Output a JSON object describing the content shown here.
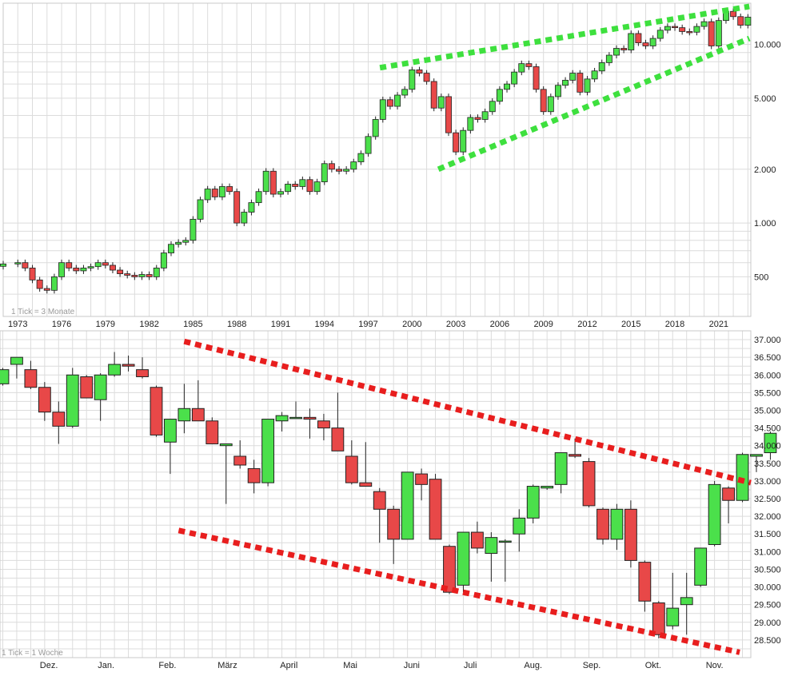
{
  "chart_data": [
    {
      "type": "candlestick",
      "scale": "log",
      "period_note": "1 Tick = 3 Monate",
      "x_tick_labels": [
        "1973",
        "1976",
        "1979",
        "1982",
        "1985",
        "1988",
        "1991",
        "1994",
        "1997",
        "2000",
        "2003",
        "2006",
        "2009",
        "2012",
        "2015",
        "2018",
        "2021"
      ],
      "y_tick_labels": [
        "500",
        "1.000",
        "2.000",
        "5.000",
        "10.000"
      ],
      "y_ticks": [
        500,
        1000,
        2000,
        5000,
        10000
      ],
      "ylim": [
        300,
        17000
      ],
      "xlim": [
        1972.0,
        2023.2
      ],
      "grid": true,
      "up_color": "#4be04b",
      "down_color": "#e84848",
      "closes": [
        [
          1972.0,
          590
        ],
        [
          1973.0,
          600
        ],
        [
          1973.5,
          560
        ],
        [
          1974.0,
          480
        ],
        [
          1974.5,
          430
        ],
        [
          1975.0,
          420
        ],
        [
          1975.5,
          500
        ],
        [
          1976.0,
          600
        ],
        [
          1976.5,
          560
        ],
        [
          1977.0,
          540
        ],
        [
          1977.5,
          560
        ],
        [
          1978.0,
          570
        ],
        [
          1978.5,
          600
        ],
        [
          1979.0,
          580
        ],
        [
          1979.5,
          545
        ],
        [
          1980.0,
          520
        ],
        [
          1980.5,
          510
        ],
        [
          1981.0,
          500
        ],
        [
          1981.5,
          515
        ],
        [
          1982.0,
          500
        ],
        [
          1982.5,
          560
        ],
        [
          1983.0,
          680
        ],
        [
          1983.5,
          760
        ],
        [
          1984.0,
          780
        ],
        [
          1984.5,
          800
        ],
        [
          1985.0,
          1050
        ],
        [
          1985.5,
          1350
        ],
        [
          1986.0,
          1550
        ],
        [
          1986.5,
          1400
        ],
        [
          1987.0,
          1600
        ],
        [
          1987.5,
          1500
        ],
        [
          1988.0,
          1000
        ],
        [
          1988.5,
          1150
        ],
        [
          1989.0,
          1300
        ],
        [
          1989.5,
          1500
        ],
        [
          1990.0,
          1950
        ],
        [
          1990.5,
          1450
        ],
        [
          1991.0,
          1500
        ],
        [
          1991.5,
          1650
        ],
        [
          1992.0,
          1600
        ],
        [
          1992.5,
          1750
        ],
        [
          1993.0,
          1500
        ],
        [
          1993.5,
          1700
        ],
        [
          1994.0,
          2150
        ],
        [
          1994.5,
          2000
        ],
        [
          1995.0,
          1950
        ],
        [
          1995.5,
          2000
        ],
        [
          1996.0,
          2200
        ],
        [
          1996.5,
          2450
        ],
        [
          1997.0,
          3050
        ],
        [
          1997.5,
          3800
        ],
        [
          1998.0,
          4900
        ],
        [
          1998.5,
          4500
        ],
        [
          1999.0,
          5200
        ],
        [
          1999.5,
          5600
        ],
        [
          2000.0,
          7200
        ],
        [
          2000.5,
          6900
        ],
        [
          2001.0,
          6200
        ],
        [
          2001.5,
          4400
        ],
        [
          2002.0,
          5100
        ],
        [
          2002.5,
          3200
        ],
        [
          2003.0,
          2500
        ],
        [
          2003.5,
          3300
        ],
        [
          2004.0,
          3900
        ],
        [
          2004.5,
          3800
        ],
        [
          2005.0,
          4200
        ],
        [
          2005.5,
          4800
        ],
        [
          2006.0,
          5600
        ],
        [
          2006.5,
          6000
        ],
        [
          2007.0,
          7000
        ],
        [
          2007.5,
          7800
        ],
        [
          2008.0,
          7500
        ],
        [
          2008.5,
          5600
        ],
        [
          2009.0,
          4200
        ],
        [
          2009.5,
          5100
        ],
        [
          2010.0,
          5900
        ],
        [
          2010.5,
          6300
        ],
        [
          2011.0,
          6900
        ],
        [
          2011.5,
          5400
        ],
        [
          2012.0,
          6400
        ],
        [
          2012.5,
          7100
        ],
        [
          2013.0,
          7900
        ],
        [
          2013.5,
          8700
        ],
        [
          2014.0,
          9500
        ],
        [
          2014.5,
          9300
        ],
        [
          2015.0,
          11500
        ],
        [
          2015.5,
          10200
        ],
        [
          2016.0,
          9800
        ],
        [
          2016.5,
          10800
        ],
        [
          2017.0,
          12000
        ],
        [
          2017.5,
          12600
        ],
        [
          2018.0,
          12400
        ],
        [
          2018.5,
          11800
        ],
        [
          2019.0,
          11700
        ],
        [
          2019.5,
          12600
        ],
        [
          2020.0,
          13400
        ],
        [
          2020.5,
          9800
        ],
        [
          2021.0,
          13600
        ],
        [
          2021.5,
          15300
        ],
        [
          2022.0,
          14300
        ],
        [
          2022.5,
          12800
        ],
        [
          2023.0,
          14200
        ]
      ],
      "trend_lines": [
        {
          "name": "upper",
          "color": "#3ee03e",
          "from": [
            1997.8,
            7400
          ],
          "to": [
            2023.1,
            16300
          ]
        },
        {
          "name": "lower",
          "color": "#3ee03e",
          "from": [
            2001.8,
            2000
          ],
          "to": [
            2023.1,
            10800
          ]
        }
      ]
    },
    {
      "type": "candlestick",
      "scale": "linear",
      "period_note": "1 Tick = 1 Woche",
      "x_tick_labels": [
        "Dez.",
        "Jan.",
        "Feb.",
        "März",
        "April",
        "Mai",
        "Juni",
        "Juli",
        "Aug.",
        "Sep.",
        "Okt.",
        "Nov."
      ],
      "y_tick_labels": [
        "28.500",
        "29.000",
        "29.500",
        "30.000",
        "30.500",
        "31.000",
        "31.500",
        "32.000",
        "32.500",
        "33.000",
        "33.500",
        "34.000",
        "34.500",
        "35.000",
        "35.500",
        "36.000",
        "36.500",
        "37.000"
      ],
      "y_ticks": [
        28500,
        29000,
        29500,
        30000,
        30500,
        31000,
        31500,
        32000,
        32500,
        33000,
        33500,
        34000,
        34500,
        35000,
        35500,
        36000,
        36500,
        37000
      ],
      "ylim": [
        28000,
        37250
      ],
      "xlim": [
        -3.2,
        50.6
      ],
      "grid": true,
      "up_color": "#4be04b",
      "down_color": "#e84848",
      "candles": [
        {
          "o": 35750,
          "h": 36200,
          "l": 35700,
          "c": 36150
        },
        {
          "o": 36300,
          "h": 36500,
          "l": 35900,
          "c": 36500
        },
        {
          "o": 36150,
          "h": 36400,
          "l": 35600,
          "c": 35650
        },
        {
          "o": 35650,
          "h": 35800,
          "l": 34700,
          "c": 34950
        },
        {
          "o": 34950,
          "h": 35250,
          "l": 34050,
          "c": 34550
        },
        {
          "o": 34550,
          "h": 36200,
          "l": 34500,
          "c": 36000
        },
        {
          "o": 35950,
          "h": 36000,
          "l": 35350,
          "c": 35350
        },
        {
          "o": 35300,
          "h": 36050,
          "l": 34700,
          "c": 36000
        },
        {
          "o": 36000,
          "h": 36650,
          "l": 35950,
          "c": 36300
        },
        {
          "o": 36300,
          "h": 36550,
          "l": 36100,
          "c": 36250
        },
        {
          "o": 36150,
          "h": 36500,
          "l": 35900,
          "c": 35950
        },
        {
          "o": 35650,
          "h": 35700,
          "l": 34250,
          "c": 34300
        },
        {
          "o": 34100,
          "h": 34750,
          "l": 33200,
          "c": 34750
        },
        {
          "o": 34700,
          "h": 35750,
          "l": 34350,
          "c": 35050
        },
        {
          "o": 35050,
          "h": 35850,
          "l": 34700,
          "c": 34700
        },
        {
          "o": 34700,
          "h": 34800,
          "l": 34050,
          "c": 34050
        },
        {
          "o": 34000,
          "h": 34050,
          "l": 32350,
          "c": 34050
        },
        {
          "o": 33700,
          "h": 34150,
          "l": 33350,
          "c": 33450
        },
        {
          "o": 33350,
          "h": 33600,
          "l": 32650,
          "c": 32950
        },
        {
          "o": 32950,
          "h": 34750,
          "l": 32850,
          "c": 34750
        },
        {
          "o": 34700,
          "h": 34950,
          "l": 34400,
          "c": 34850
        },
        {
          "o": 34800,
          "h": 35250,
          "l": 34800,
          "c": 34800
        },
        {
          "o": 34800,
          "h": 35050,
          "l": 34200,
          "c": 34750
        },
        {
          "o": 34700,
          "h": 34900,
          "l": 34150,
          "c": 34500
        },
        {
          "o": 34500,
          "h": 35500,
          "l": 33850,
          "c": 33850
        },
        {
          "o": 33700,
          "h": 34150,
          "l": 32900,
          "c": 32950
        },
        {
          "o": 32950,
          "h": 34100,
          "l": 32850,
          "c": 32850
        },
        {
          "o": 32700,
          "h": 32800,
          "l": 31250,
          "c": 32200
        },
        {
          "o": 32200,
          "h": 32300,
          "l": 30650,
          "c": 31350
        },
        {
          "o": 31350,
          "h": 33250,
          "l": 31350,
          "c": 33250
        },
        {
          "o": 33200,
          "h": 33350,
          "l": 32450,
          "c": 32900
        },
        {
          "o": 33050,
          "h": 33200,
          "l": 31350,
          "c": 31350
        },
        {
          "o": 31150,
          "h": 31200,
          "l": 29800,
          "c": 29850
        },
        {
          "o": 30050,
          "h": 31550,
          "l": 29850,
          "c": 31550
        },
        {
          "o": 31550,
          "h": 31850,
          "l": 30950,
          "c": 31100
        },
        {
          "o": 30950,
          "h": 31550,
          "l": 30150,
          "c": 31400
        },
        {
          "o": 31300,
          "h": 31350,
          "l": 30150,
          "c": 31300
        },
        {
          "o": 31500,
          "h": 32200,
          "l": 31000,
          "c": 31950
        },
        {
          "o": 31950,
          "h": 32900,
          "l": 31800,
          "c": 32850
        },
        {
          "o": 32800,
          "h": 32850,
          "l": 32750,
          "c": 32850
        },
        {
          "o": 32900,
          "h": 33800,
          "l": 32650,
          "c": 33800
        },
        {
          "o": 33750,
          "h": 34200,
          "l": 33650,
          "c": 33700
        },
        {
          "o": 33550,
          "h": 33650,
          "l": 32250,
          "c": 32300
        },
        {
          "o": 32200,
          "h": 32250,
          "l": 31200,
          "c": 31350
        },
        {
          "o": 31350,
          "h": 32350,
          "l": 31050,
          "c": 32200
        },
        {
          "o": 32200,
          "h": 32450,
          "l": 30550,
          "c": 30750
        },
        {
          "o": 30700,
          "h": 30750,
          "l": 29300,
          "c": 29600
        },
        {
          "o": 29550,
          "h": 29600,
          "l": 28550,
          "c": 28650
        },
        {
          "o": 28900,
          "h": 30400,
          "l": 28800,
          "c": 29400
        },
        {
          "o": 29500,
          "h": 30400,
          "l": 28650,
          "c": 29700
        },
        {
          "o": 30050,
          "h": 31100,
          "l": 30000,
          "c": 31100
        },
        {
          "o": 31200,
          "h": 33000,
          "l": 31150,
          "c": 32900
        },
        {
          "o": 32800,
          "h": 32850,
          "l": 31800,
          "c": 32450
        },
        {
          "o": 32450,
          "h": 33800,
          "l": 32400,
          "c": 33750
        },
        {
          "o": 33700,
          "h": 33750,
          "l": 33250,
          "c": 33750
        },
        {
          "o": 33800,
          "h": 34400,
          "l": 33600,
          "c": 34350
        }
      ],
      "trend_lines": [
        {
          "name": "upper",
          "color": "#e81e1e",
          "from": [
            10.0,
            36950
          ],
          "to": [
            50.6,
            32950
          ]
        },
        {
          "name": "lower",
          "color": "#e81e1e",
          "from": [
            9.6,
            31600
          ],
          "to": [
            49.8,
            28150
          ]
        }
      ]
    }
  ]
}
